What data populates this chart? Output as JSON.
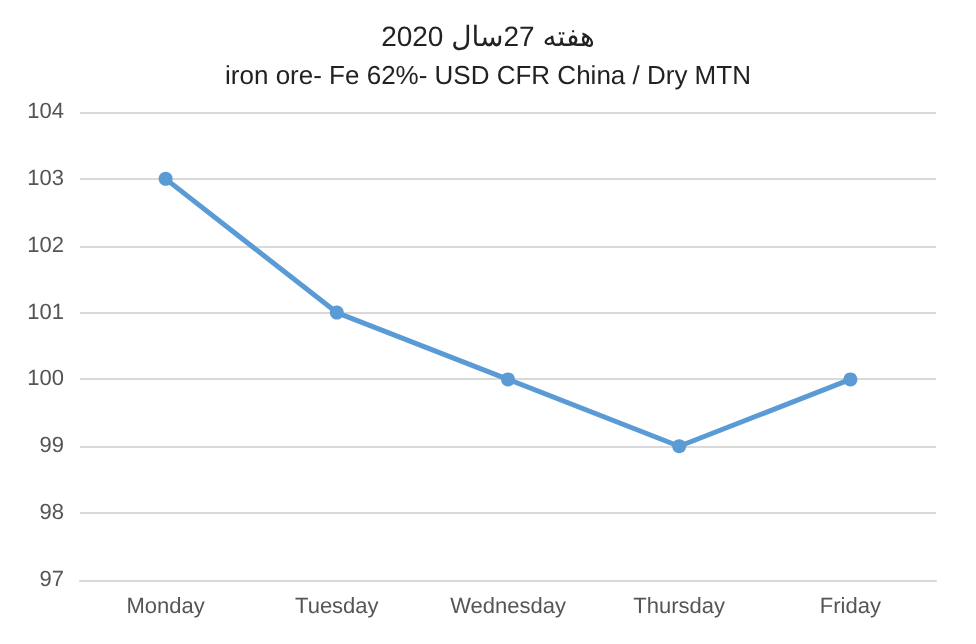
{
  "chart_data": {
    "type": "line",
    "title": "هفته 27سال 2020",
    "subtitle": "iron ore- Fe 62%- USD CFR China / Dry MTN",
    "categories": [
      "Monday",
      "Tuesday",
      "Wednesday",
      "Thursday",
      "Friday"
    ],
    "series": [
      {
        "color": "#5b9bd5",
        "values": [
          103,
          101,
          100,
          99,
          100
        ]
      }
    ],
    "ylim": [
      97,
      104
    ],
    "yticks": [
      97,
      98,
      99,
      100,
      101,
      102,
      103,
      104
    ],
    "grid": "y",
    "marker": "circle",
    "line_style": "solid"
  }
}
